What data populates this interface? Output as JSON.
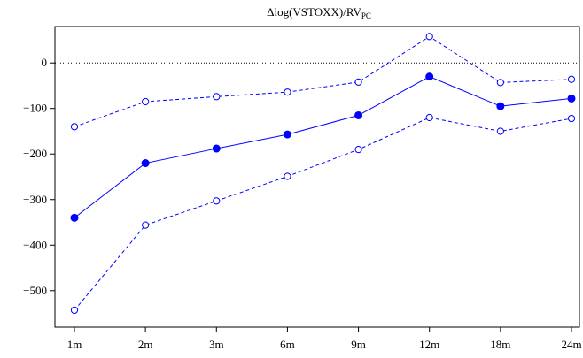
{
  "chart_data": {
    "type": "line",
    "title_main": "Δlog(VSTOXX)/RV",
    "title_sub": "PC",
    "categories": [
      "1m",
      "2m",
      "3m",
      "6m",
      "9m",
      "12m",
      "18m",
      "24m"
    ],
    "ylim": [
      -580,
      80
    ],
    "yticks": [
      0,
      -100,
      -200,
      -300,
      -400,
      -500
    ],
    "ytick_labels": [
      "0",
      "−100",
      "−200",
      "−300",
      "−400",
      "−500"
    ],
    "reference_line": 0,
    "grid": false,
    "legend": "none",
    "series": [
      {
        "role": "estimate",
        "style": "solid",
        "marker": "filled-circle",
        "values": [
          -340,
          -220,
          -188,
          -157,
          -115,
          -30,
          -95,
          -78
        ]
      },
      {
        "role": "upper-band",
        "style": "dashed",
        "marker": "open-circle",
        "values": [
          -140,
          -85,
          -74,
          -64,
          -42,
          58,
          -43,
          -36
        ]
      },
      {
        "role": "lower-band",
        "style": "dashed",
        "marker": "open-circle",
        "values": [
          -543,
          -356,
          -303,
          -249,
          -190,
          -120,
          -150,
          -122
        ]
      }
    ],
    "colors": {
      "series": "#0000ff",
      "axis": "#000000",
      "reference": "#000000"
    }
  }
}
